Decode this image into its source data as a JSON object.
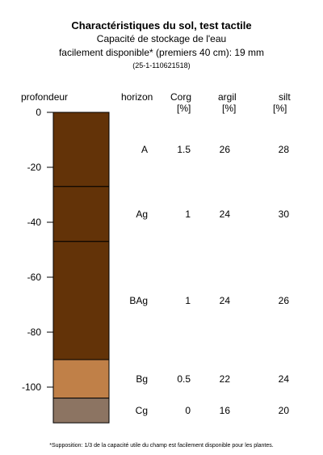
{
  "title": "Charactéristiques du sol, test tactile",
  "subtitle_line1": "Capacité de stockage de l'eau",
  "subtitle_line2": "facilement disponible* (premiers 40 cm): 19 mm",
  "sample_id": "(25-1-110621518)",
  "footnote": "*Supposition: 1/3 de la capacité utile du champ est facilement disponible pour les plantes.",
  "headers": {
    "depth": "profondeur",
    "horizon": "horizon",
    "corg": "Corg",
    "corg_unit": "[%]",
    "clay": "argil",
    "clay_unit": "[%]",
    "silt": "silt",
    "silt_unit": "[%]"
  },
  "chart_data": {
    "type": "soil-profile",
    "ylabel": "profondeur",
    "ylim": [
      -113,
      0
    ],
    "yticks": [
      0,
      -20,
      -40,
      -60,
      -80,
      -100
    ],
    "layers": [
      {
        "horizon": "A",
        "top": 0,
        "bottom": -27,
        "corg": "1.5",
        "clay": "26",
        "silt": "28",
        "color": "#633308"
      },
      {
        "horizon": "Ag",
        "top": -27,
        "bottom": -47,
        "corg": "1",
        "clay": "24",
        "silt": "30",
        "color": "#633308"
      },
      {
        "horizon": "BAg",
        "top": -47,
        "bottom": -90,
        "corg": "1",
        "clay": "24",
        "silt": "26",
        "color": "#633308"
      },
      {
        "horizon": "Bg",
        "top": -90,
        "bottom": -104,
        "corg": "0.5",
        "clay": "22",
        "silt": "24",
        "color": "#c08048"
      },
      {
        "horizon": "Cg",
        "top": -104,
        "bottom": -113,
        "corg": "0",
        "clay": "16",
        "silt": "20",
        "color": "#8c7462"
      }
    ]
  }
}
